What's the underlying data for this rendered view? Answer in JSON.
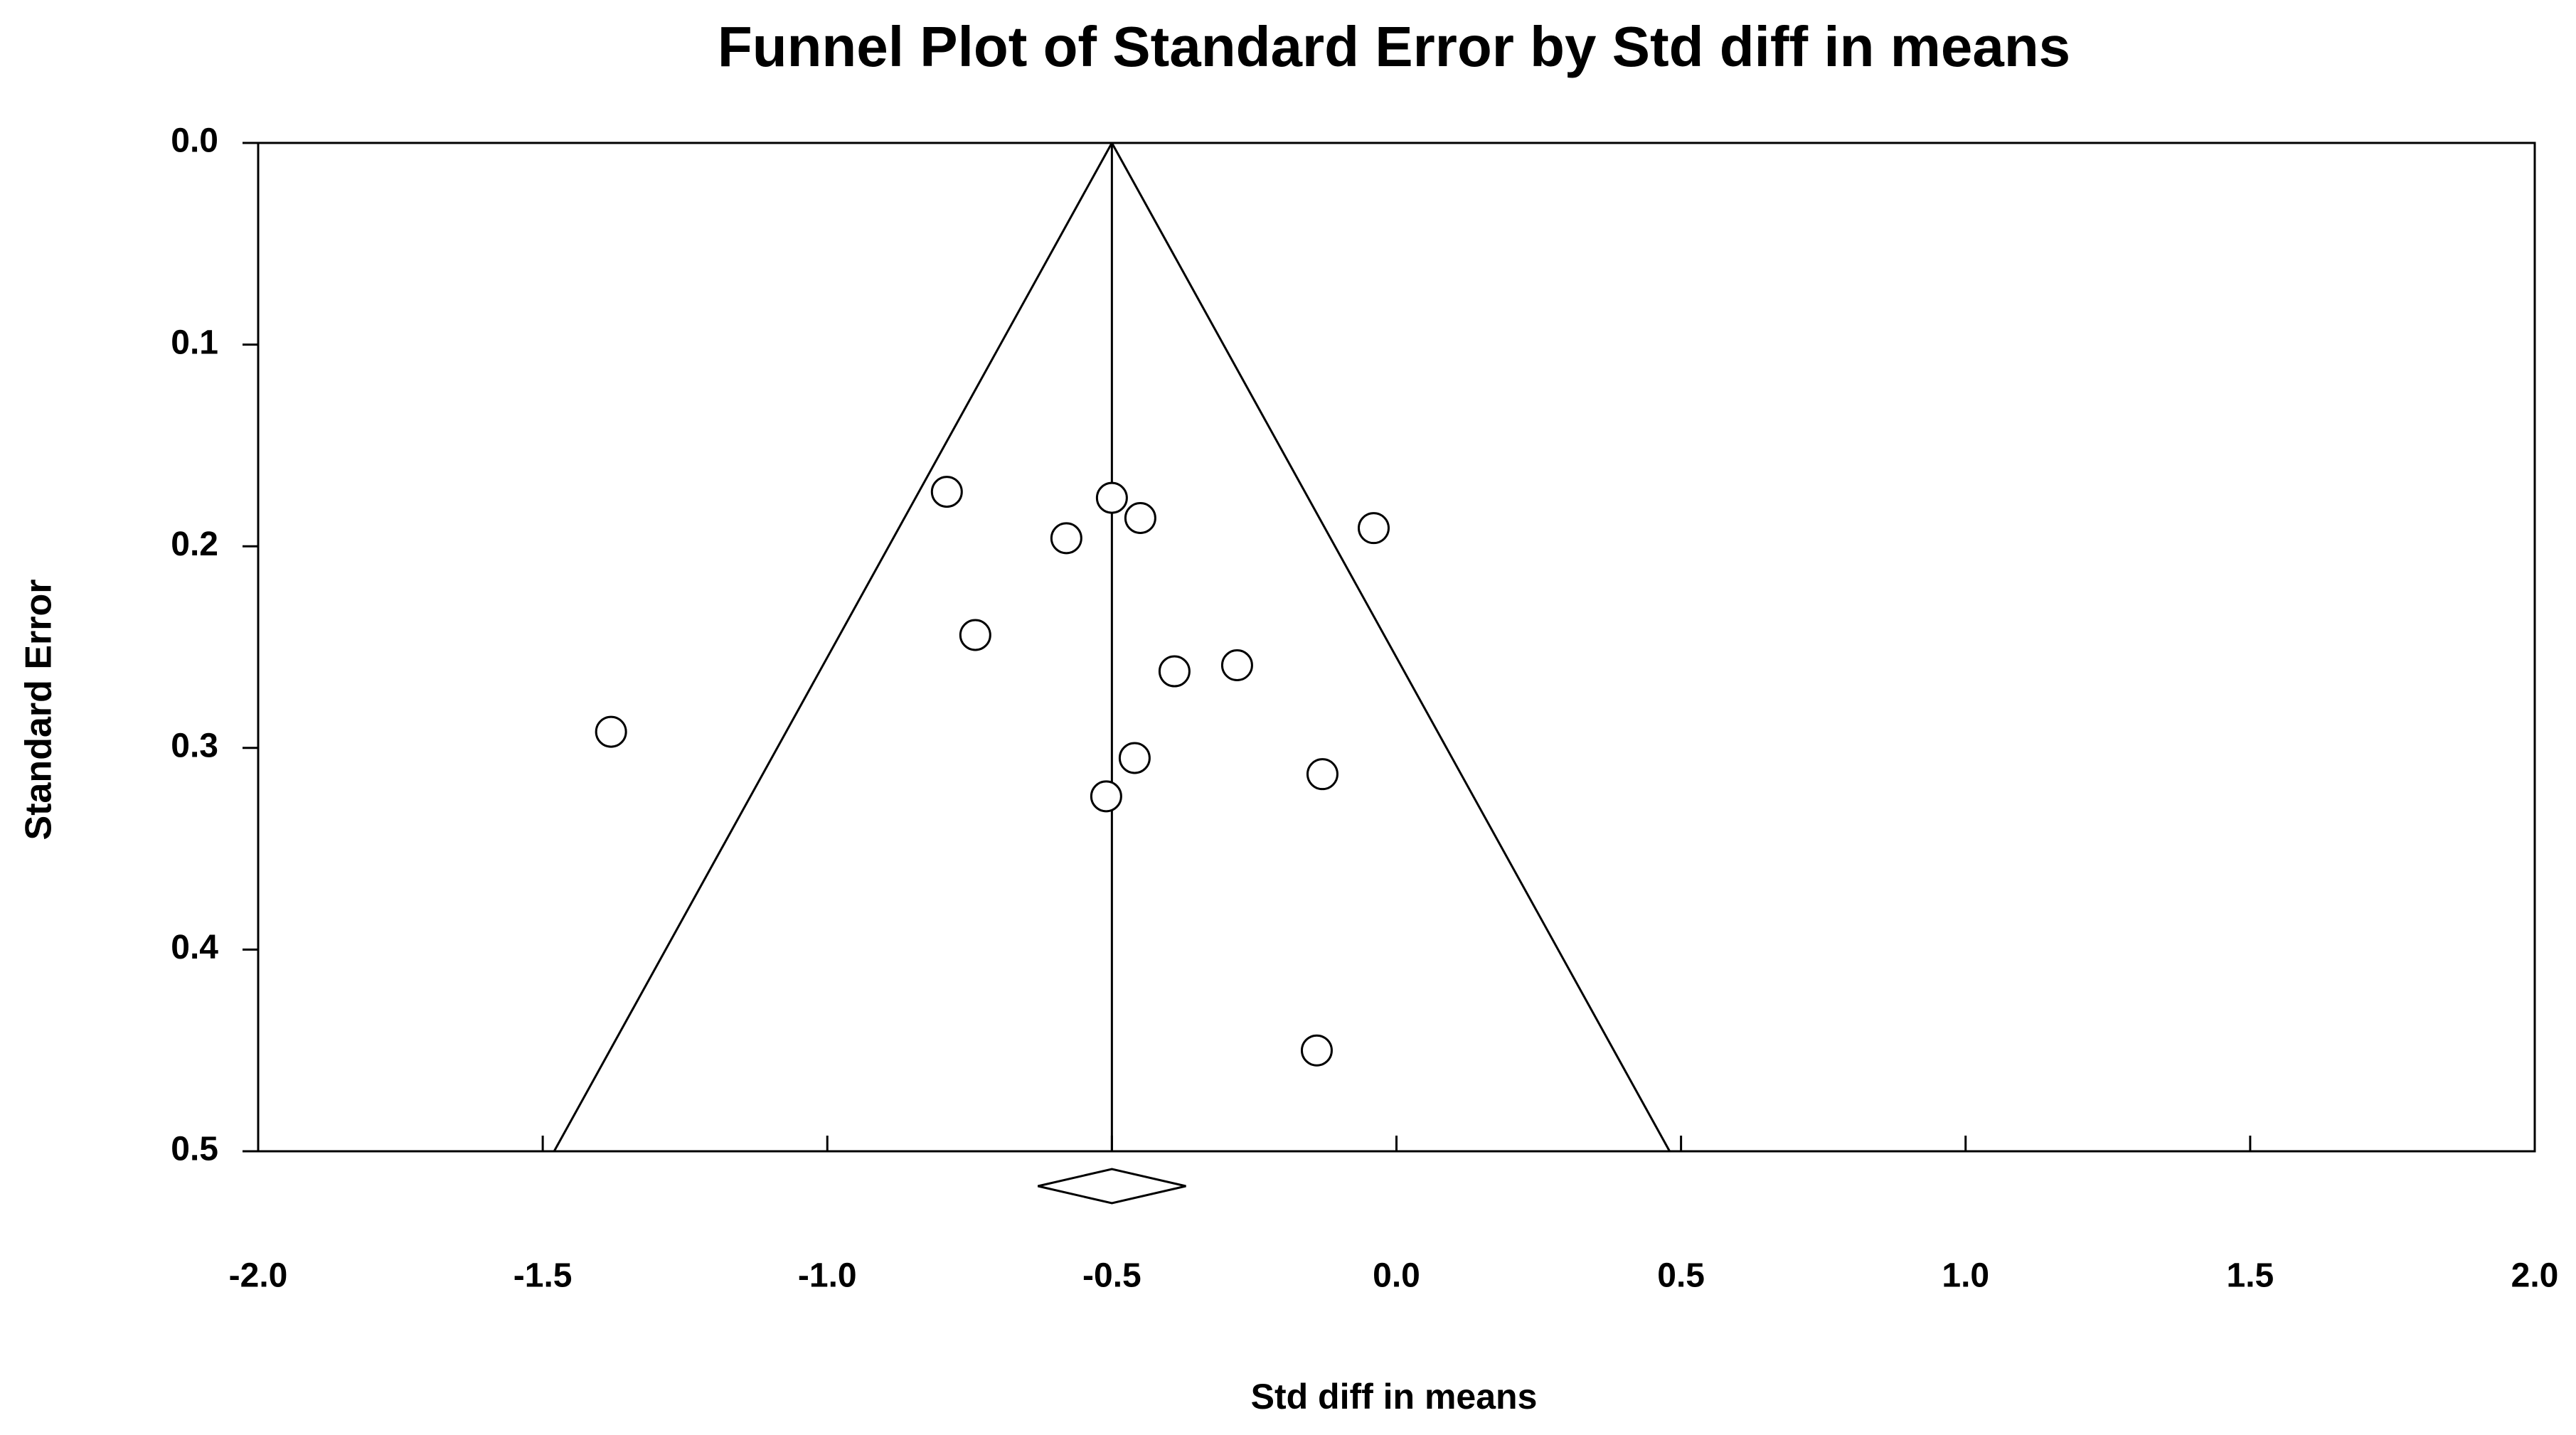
{
  "chart_data": {
    "type": "scatter",
    "title": "Funnel Plot of Standard Error by Std diff in means",
    "x_label": "Std diff in means",
    "y_label": "Standard Error",
    "x": [
      -0.79,
      -0.5,
      -0.45,
      -0.58,
      -0.04,
      -0.74,
      -0.39,
      -0.28,
      -1.38,
      -0.46,
      -0.13,
      -0.51,
      -0.14
    ],
    "values": [
      0.173,
      0.176,
      0.186,
      0.196,
      0.191,
      0.244,
      0.262,
      0.259,
      0.292,
      0.305,
      0.313,
      0.324,
      0.45
    ],
    "color": "#000000",
    "xlim": [
      -2,
      2
    ],
    "ylim": [
      0,
      0.5
    ],
    "y_inverted": true,
    "xticks": [
      {
        "value": -2,
        "label": "-2.0"
      },
      -1.5,
      {
        "value": -1,
        "label": "-1.0"
      },
      -0.5,
      {
        "value": 0,
        "label": "0.0"
      },
      0.5,
      {
        "value": 1,
        "label": "1.0"
      },
      1.5,
      {
        "value": 2,
        "label": "2.0"
      }
    ],
    "yticks": [
      {
        "value": 0,
        "label": "0.0"
      },
      0.1,
      0.2,
      0.3,
      0.4,
      0.5
    ],
    "funnel": {
      "apex": -0.5,
      "base": [
        -1.48,
        0.48
      ]
    },
    "summary": {
      "estimate": -0.5,
      "lower": -0.63,
      "upper": -0.37
    }
  }
}
